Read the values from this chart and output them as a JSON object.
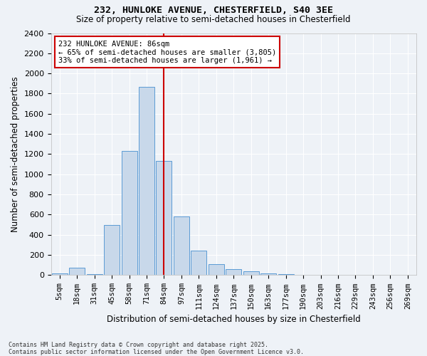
{
  "title1": "232, HUNLOKE AVENUE, CHESTERFIELD, S40 3EE",
  "title2": "Size of property relative to semi-detached houses in Chesterfield",
  "xlabel": "Distribution of semi-detached houses by size in Chesterfield",
  "ylabel": "Number of semi-detached properties",
  "bar_labels": [
    "5sqm",
    "18sqm",
    "31sqm",
    "45sqm",
    "58sqm",
    "71sqm",
    "84sqm",
    "97sqm",
    "111sqm",
    "124sqm",
    "137sqm",
    "150sqm",
    "163sqm",
    "177sqm",
    "190sqm",
    "203sqm",
    "216sqm",
    "229sqm",
    "243sqm",
    "256sqm",
    "269sqm"
  ],
  "bar_values": [
    15,
    75,
    10,
    500,
    1230,
    1870,
    1135,
    580,
    242,
    108,
    60,
    38,
    20,
    12,
    5,
    2,
    1,
    0,
    0,
    0,
    0
  ],
  "bar_color": "#c8d8ea",
  "bar_edge_color": "#5b9bd5",
  "vline_color": "#cc0000",
  "annotation_title": "232 HUNLOKE AVENUE: 86sqm",
  "annotation_line1": "← 65% of semi-detached houses are smaller (3,805)",
  "annotation_line2": "33% of semi-detached houses are larger (1,961) →",
  "annotation_box_color": "#ffffff",
  "annotation_box_edge": "#cc0000",
  "ylim": [
    0,
    2400
  ],
  "yticks": [
    0,
    200,
    400,
    600,
    800,
    1000,
    1200,
    1400,
    1600,
    1800,
    2000,
    2200,
    2400
  ],
  "footer": "Contains HM Land Registry data © Crown copyright and database right 2025.\nContains public sector information licensed under the Open Government Licence v3.0.",
  "bg_color": "#eef2f7",
  "grid_color": "#ffffff"
}
